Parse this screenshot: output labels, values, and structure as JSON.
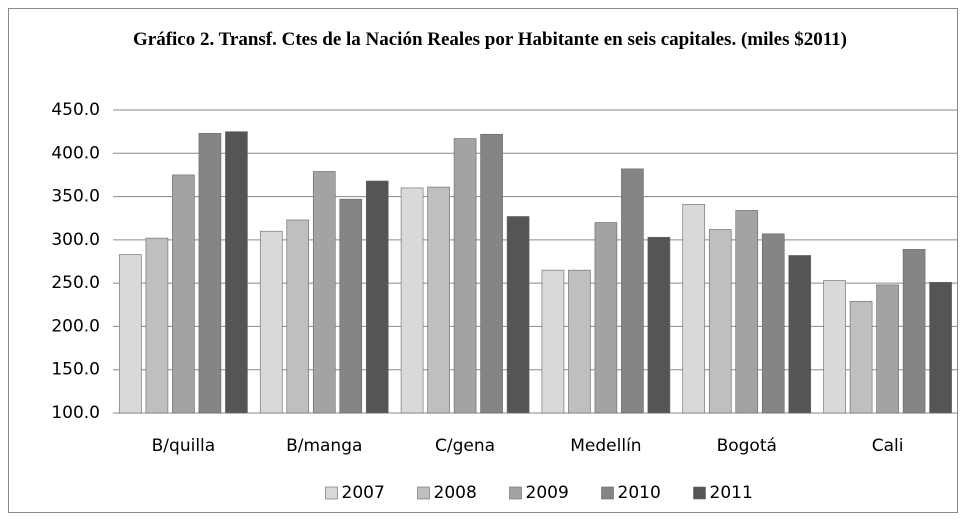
{
  "chart_data": {
    "type": "bar",
    "title": "Gráfico 2. Transf. Ctes de la  Nación Reales por Habitante en seis capitales. (miles $2011)",
    "categories": [
      "B/quilla",
      "B/manga",
      "C/gena",
      "Medellín",
      "Bogotá",
      "Cali"
    ],
    "series": [
      {
        "name": "2007",
        "color": "#d9d9d9",
        "values": [
          283,
          310,
          360,
          265,
          341,
          253
        ]
      },
      {
        "name": "2008",
        "color": "#bfbfbf",
        "values": [
          302,
          323,
          361,
          265,
          312,
          229
        ]
      },
      {
        "name": "2009",
        "color": "#a3a3a3",
        "values": [
          375,
          379,
          417,
          320,
          334,
          248
        ]
      },
      {
        "name": "2010",
        "color": "#858585",
        "values": [
          423,
          347,
          422,
          382,
          307,
          289
        ]
      },
      {
        "name": "2011",
        "color": "#555555",
        "values": [
          425,
          368,
          327,
          303,
          282,
          251
        ]
      }
    ],
    "ylim": [
      100,
      450
    ],
    "yticks": [
      {
        "value": 100,
        "label": "100.0"
      },
      {
        "value": 150,
        "label": "150.0"
      },
      {
        "value": 200,
        "label": "200.0"
      },
      {
        "value": 250,
        "label": "250.0"
      },
      {
        "value": 300,
        "label": "300.0"
      },
      {
        "value": 350,
        "label": "350.0"
      },
      {
        "value": 400,
        "label": "400.0"
      },
      {
        "value": 450,
        "label": "450.0"
      }
    ],
    "grid": true,
    "legend": "bottom"
  }
}
